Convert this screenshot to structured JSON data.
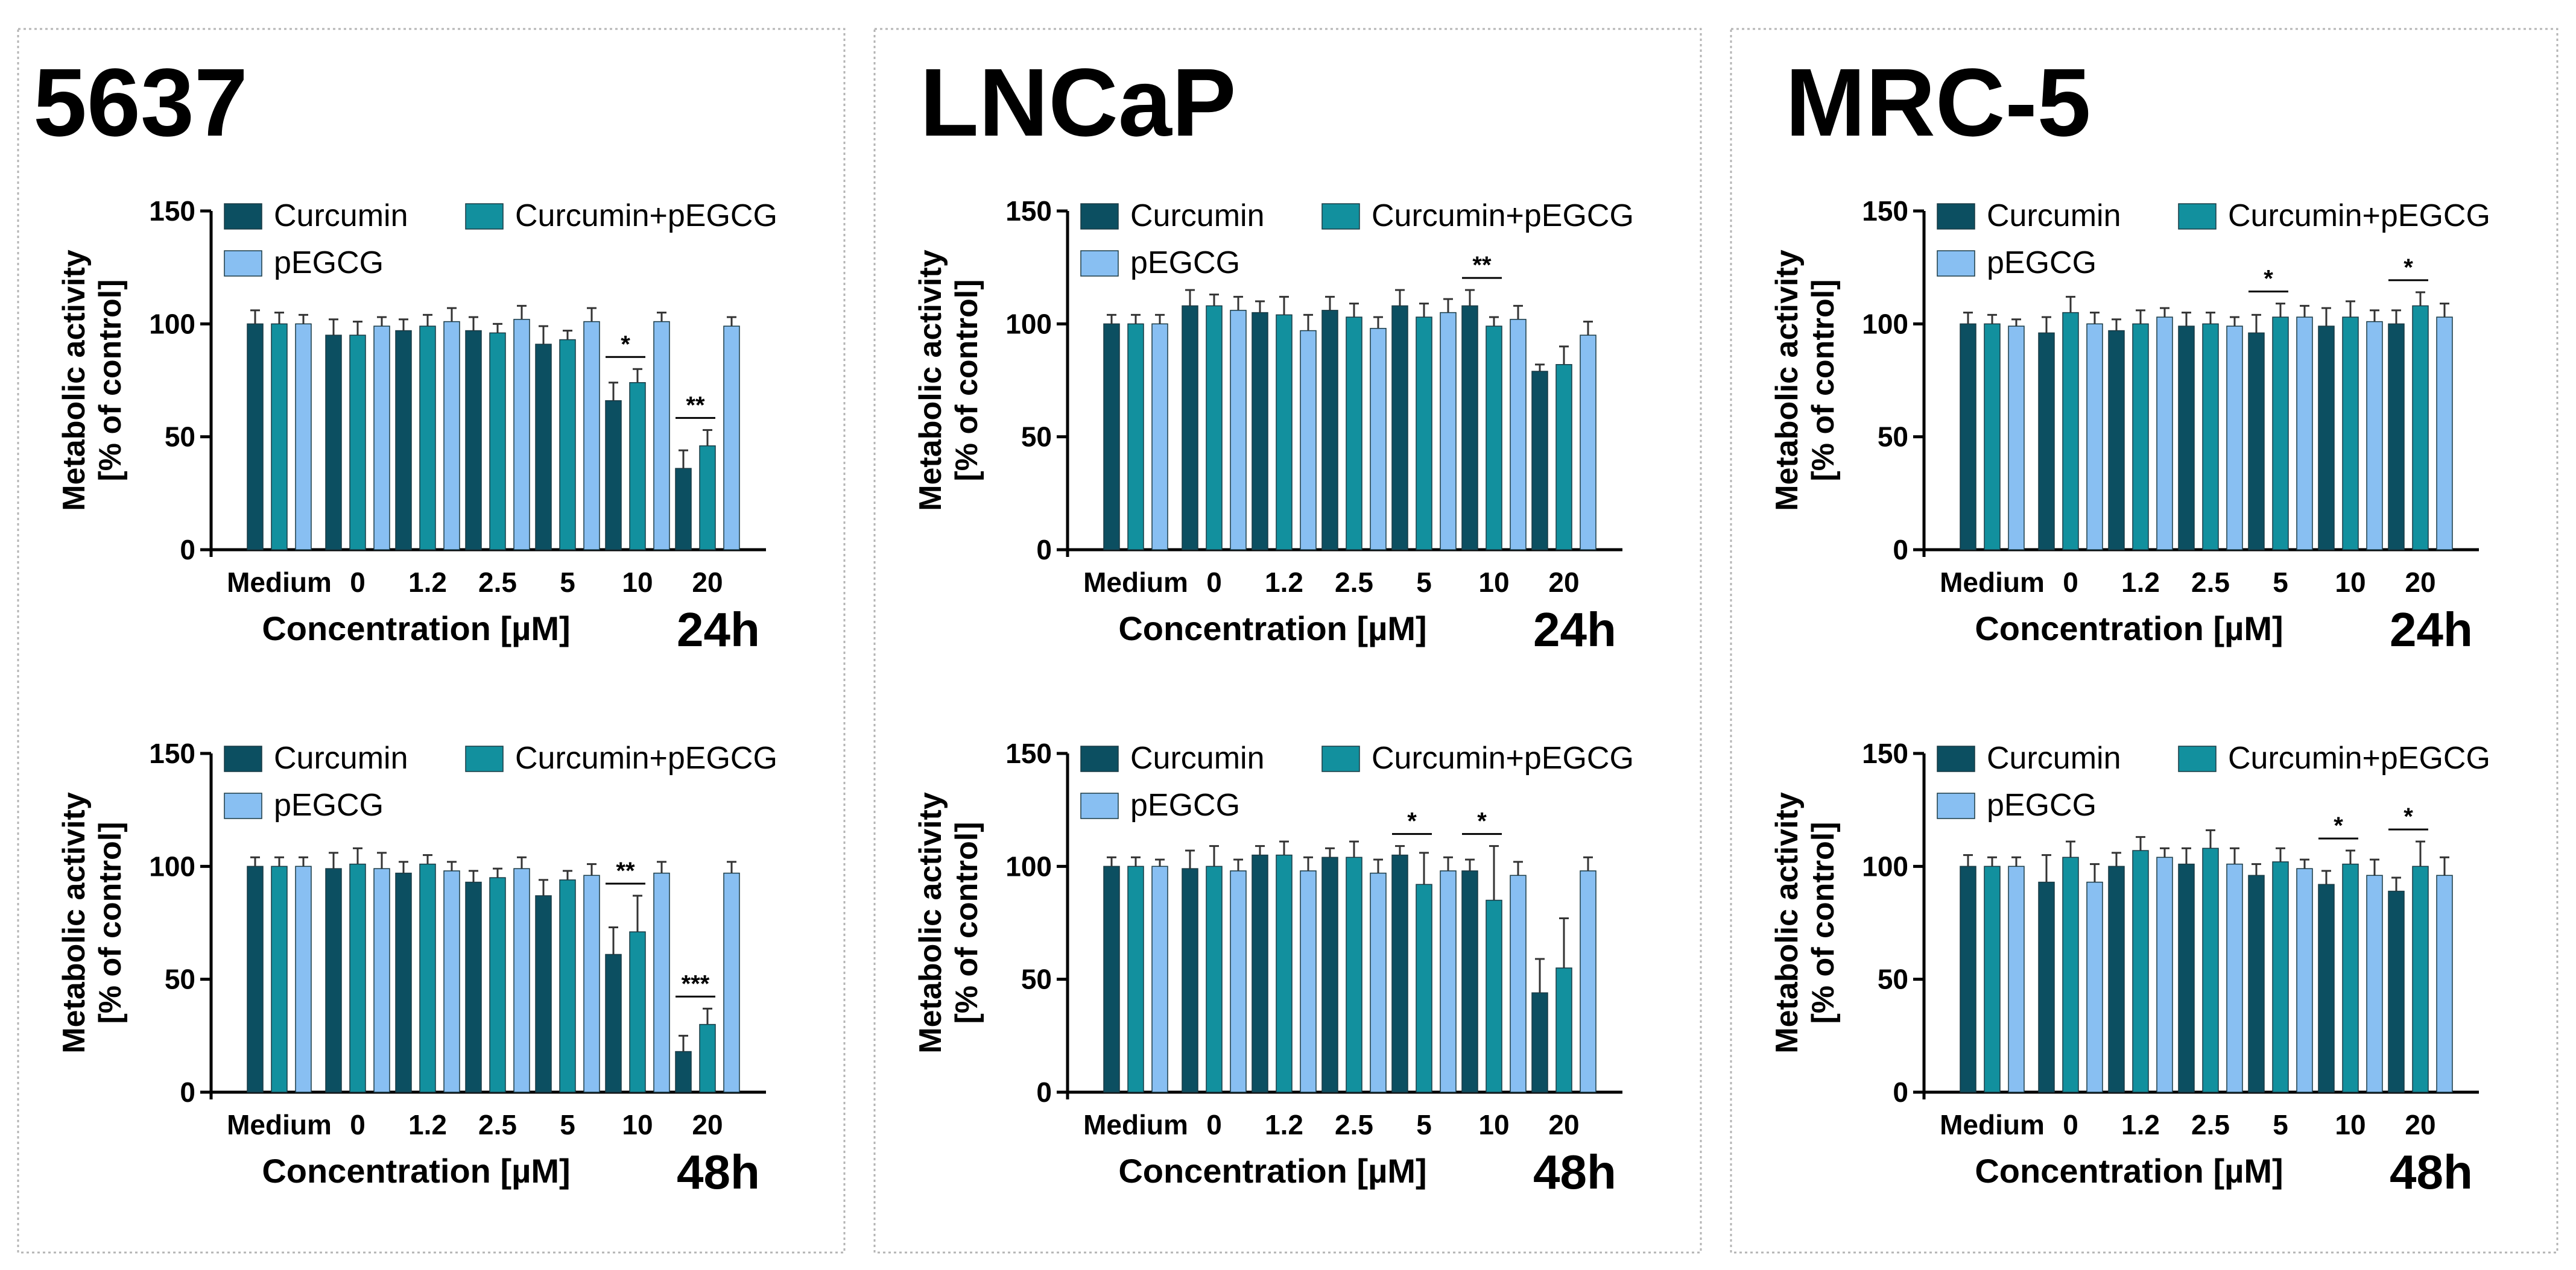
{
  "legend": {
    "series": [
      "Curcumin",
      "Curcumin+pEGCG",
      "pEGCG"
    ]
  },
  "colors": {
    "Curcumin": "#0c4f61",
    "Curcumin+pEGCG": "#12909e",
    "pEGCG": "#88bff2",
    "panel_border": "#b5b5b5",
    "axis": "#000000"
  },
  "panels": [
    {
      "title": "5637"
    },
    {
      "title": "LNCaP"
    },
    {
      "title": "MRC-5"
    }
  ],
  "chart_data": [
    {
      "type": "bar",
      "panel": "5637",
      "time_label": "24h",
      "categories": [
        "Medium",
        "0",
        "1.2",
        "2.5",
        "5",
        "10",
        "20"
      ],
      "xlabel": "Concentration [µM]",
      "ylabel": [
        "Metabolic activity",
        "[% of control]"
      ],
      "ylim": [
        0,
        150
      ],
      "yticks": [
        0,
        50,
        100,
        150
      ],
      "series": [
        {
          "name": "Curcumin",
          "values": [
            100,
            95,
            97,
            97,
            91,
            66,
            36
          ],
          "errors": [
            6,
            7,
            5,
            6,
            8,
            8,
            8
          ]
        },
        {
          "name": "Curcumin+pEGCG",
          "values": [
            100,
            95,
            99,
            96,
            93,
            74,
            46
          ],
          "errors": [
            5,
            6,
            5,
            4,
            4,
            6,
            7
          ]
        },
        {
          "name": "pEGCG",
          "values": [
            100,
            99,
            101,
            102,
            101,
            101,
            99
          ],
          "errors": [
            4,
            4,
            6,
            6,
            6,
            4,
            4
          ]
        }
      ],
      "annotations": [
        {
          "category": "10",
          "label": "*"
        },
        {
          "category": "20",
          "label": "**"
        }
      ]
    },
    {
      "type": "bar",
      "panel": "5637",
      "time_label": "48h",
      "categories": [
        "Medium",
        "0",
        "1.2",
        "2.5",
        "5",
        "10",
        "20"
      ],
      "xlabel": "Concentration [µM]",
      "ylabel": [
        "Metabolic activity",
        "[% of control]"
      ],
      "ylim": [
        0,
        150
      ],
      "yticks": [
        0,
        50,
        100,
        150
      ],
      "series": [
        {
          "name": "Curcumin",
          "values": [
            100,
            99,
            97,
            93,
            87,
            61,
            18
          ],
          "errors": [
            4,
            7,
            5,
            5,
            7,
            12,
            7
          ]
        },
        {
          "name": "Curcumin+pEGCG",
          "values": [
            100,
            101,
            101,
            95,
            94,
            71,
            30
          ],
          "errors": [
            4,
            7,
            4,
            4,
            4,
            16,
            7
          ]
        },
        {
          "name": "pEGCG",
          "values": [
            100,
            99,
            98,
            99,
            96,
            97,
            97
          ],
          "errors": [
            4,
            7,
            4,
            5,
            5,
            5,
            5
          ]
        }
      ],
      "annotations": [
        {
          "category": "10",
          "label": "**"
        },
        {
          "category": "20",
          "label": "***"
        }
      ]
    },
    {
      "type": "bar",
      "panel": "LNCaP",
      "time_label": "24h",
      "categories": [
        "Medium",
        "0",
        "1.2",
        "2.5",
        "5",
        "10",
        "20"
      ],
      "xlabel": "Concentration [µM]",
      "ylabel": [
        "Metabolic activity",
        "[% of control]"
      ],
      "ylim": [
        0,
        150
      ],
      "yticks": [
        0,
        50,
        100,
        150
      ],
      "series": [
        {
          "name": "Curcumin",
          "values": [
            100,
            108,
            105,
            106,
            108,
            108,
            79
          ],
          "errors": [
            4,
            7,
            5,
            6,
            7,
            7,
            3
          ]
        },
        {
          "name": "Curcumin+pEGCG",
          "values": [
            100,
            108,
            104,
            103,
            103,
            99,
            82
          ],
          "errors": [
            4,
            5,
            8,
            6,
            6,
            4,
            8
          ]
        },
        {
          "name": "pEGCG",
          "values": [
            100,
            106,
            97,
            98,
            105,
            102,
            95
          ],
          "errors": [
            4,
            6,
            7,
            5,
            6,
            6,
            6
          ]
        }
      ],
      "annotations": [
        {
          "category": "10",
          "label": "**"
        }
      ]
    },
    {
      "type": "bar",
      "panel": "LNCaP",
      "time_label": "48h",
      "categories": [
        "Medium",
        "0",
        "1.2",
        "2.5",
        "5",
        "10",
        "20"
      ],
      "xlabel": "Concentration [µM]",
      "ylabel": [
        "Metabolic activity",
        "[% of control]"
      ],
      "ylim": [
        0,
        150
      ],
      "yticks": [
        0,
        50,
        100,
        150
      ],
      "series": [
        {
          "name": "Curcumin",
          "values": [
            100,
            99,
            105,
            104,
            105,
            98,
            44
          ],
          "errors": [
            4,
            8,
            4,
            4,
            4,
            5,
            15
          ]
        },
        {
          "name": "Curcumin+pEGCG",
          "values": [
            100,
            100,
            105,
            104,
            92,
            85,
            55
          ],
          "errors": [
            4,
            9,
            6,
            7,
            14,
            24,
            22
          ]
        },
        {
          "name": "pEGCG",
          "values": [
            100,
            98,
            98,
            97,
            98,
            96,
            98
          ],
          "errors": [
            3,
            5,
            6,
            6,
            6,
            6,
            6
          ]
        }
      ],
      "annotations": [
        {
          "category": "5",
          "label": "*"
        },
        {
          "category": "10",
          "label": "*"
        }
      ]
    },
    {
      "type": "bar",
      "panel": "MRC-5",
      "time_label": "24h",
      "categories": [
        "Medium",
        "0",
        "1.2",
        "2.5",
        "5",
        "10",
        "20"
      ],
      "xlabel": "Concentration [µM]",
      "ylabel": [
        "Metabolic activity",
        "[% of control]"
      ],
      "ylim": [
        0,
        150
      ],
      "yticks": [
        0,
        50,
        100,
        150
      ],
      "series": [
        {
          "name": "Curcumin",
          "values": [
            100,
            96,
            97,
            99,
            96,
            99,
            100
          ],
          "errors": [
            5,
            7,
            5,
            6,
            8,
            8,
            6
          ]
        },
        {
          "name": "Curcumin+pEGCG",
          "values": [
            100,
            105,
            100,
            100,
            103,
            103,
            108
          ],
          "errors": [
            4,
            7,
            6,
            5,
            6,
            7,
            6
          ]
        },
        {
          "name": "pEGCG",
          "values": [
            99,
            100,
            103,
            99,
            103,
            101,
            103
          ],
          "errors": [
            3,
            5,
            4,
            4,
            5,
            5,
            6
          ]
        }
      ],
      "annotations": [
        {
          "category": "5",
          "label": "*"
        },
        {
          "category": "20",
          "label": "*"
        }
      ]
    },
    {
      "type": "bar",
      "panel": "MRC-5",
      "time_label": "48h",
      "categories": [
        "Medium",
        "0",
        "1.2",
        "2.5",
        "5",
        "10",
        "20"
      ],
      "xlabel": "Concentration [µM]",
      "ylabel": [
        "Metabolic activity",
        "[% of control]"
      ],
      "ylim": [
        0,
        150
      ],
      "yticks": [
        0,
        50,
        100,
        150
      ],
      "series": [
        {
          "name": "Curcumin",
          "values": [
            100,
            93,
            100,
            101,
            96,
            92,
            89
          ],
          "errors": [
            5,
            12,
            6,
            7,
            5,
            6,
            6
          ]
        },
        {
          "name": "Curcumin+pEGCG",
          "values": [
            100,
            104,
            107,
            108,
            102,
            101,
            100
          ],
          "errors": [
            4,
            7,
            6,
            8,
            6,
            6,
            11
          ]
        },
        {
          "name": "pEGCG",
          "values": [
            100,
            93,
            104,
            101,
            99,
            96,
            96
          ],
          "errors": [
            4,
            8,
            4,
            7,
            4,
            7,
            8
          ]
        }
      ],
      "annotations": [
        {
          "category": "10",
          "label": "*"
        },
        {
          "category": "20",
          "label": "*"
        }
      ]
    }
  ]
}
